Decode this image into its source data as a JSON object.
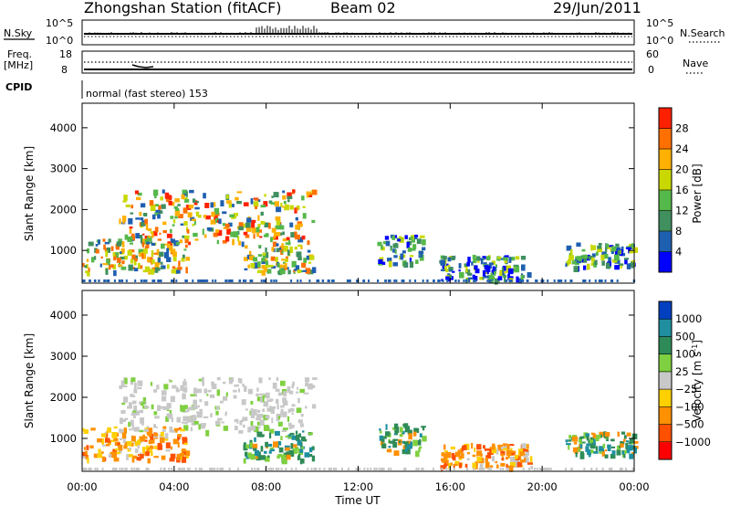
{
  "header": {
    "station": "Zhongshan Station (fitACF)",
    "beam": "Beam 02",
    "date": "29/Jun/2011"
  },
  "status_panel": {
    "nsky_label": "N.Sky",
    "nsky_top": "10^5",
    "nsky_bottom": "10^0",
    "nsearch_label": "N.Search",
    "nsearch_top": "10^5",
    "nsearch_bottom": "10^0",
    "freq_label": "Freq.",
    "freq_unit": "[MHz]",
    "freq_top": "18",
    "freq_bottom": "8",
    "nave_label": "Nave",
    "nave_top": "60",
    "nave_bottom": "0",
    "cpid_label": "CPID",
    "cpid_text": "normal (fast stereo) 153"
  },
  "chart_data": [
    {
      "type": "heatmap",
      "panel": "power",
      "ylabel": "Slant Range [km]",
      "yticks": [
        "1000",
        "2000",
        "3000",
        "4000"
      ],
      "ylim": [
        200,
        4600
      ],
      "xlim": [
        0,
        24
      ],
      "colorbar_label": "Power [dB]",
      "colorbar_ticks": [
        "4",
        "8",
        "12",
        "16",
        "20",
        "24",
        "28"
      ],
      "colorbar_colors": [
        "#0000ff",
        "#1f5fb0",
        "#3f8f5f",
        "#55b84a",
        "#c8d800",
        "#ffb000",
        "#ff7000",
        "#ff2000"
      ],
      "echo_regions": [
        {
          "t": [
            1.6,
            10.0
          ],
          "r": [
            1200,
            2500
          ],
          "level": "high"
        },
        {
          "t": [
            0.0,
            4.5
          ],
          "r": [
            500,
            1300
          ],
          "level": "medium"
        },
        {
          "t": [
            7.0,
            10.0
          ],
          "r": [
            500,
            1200
          ],
          "level": "medium"
        },
        {
          "t": [
            12.8,
            14.8
          ],
          "r": [
            700,
            1400
          ],
          "level": "low"
        },
        {
          "t": [
            15.5,
            19.5
          ],
          "r": [
            300,
            900
          ],
          "level": "low"
        },
        {
          "t": [
            21.0,
            24.0
          ],
          "r": [
            600,
            1200
          ],
          "level": "low"
        }
      ]
    },
    {
      "type": "heatmap",
      "panel": "velocity",
      "ylabel": "Slant Range [km]",
      "yticks": [
        "1000",
        "2000",
        "3000",
        "4000"
      ],
      "ylim": [
        200,
        4600
      ],
      "xlabel": "Time UT",
      "xticks": [
        "00:00",
        "04:00",
        "08:00",
        "12:00",
        "16:00",
        "20:00",
        "00:00"
      ],
      "xlim": [
        0,
        24
      ],
      "colorbar_label": "Velocity [m s",
      "colorbar_label_sup": "-1",
      "colorbar_label_end": "]",
      "colorbar_ticks": [
        "1000",
        "500",
        "100",
        "25",
        "−25",
        "−100",
        "−500",
        "−1000"
      ],
      "colorbar_colors": [
        "#0040c0",
        "#1f8fa0",
        "#2e8b57",
        "#7fd040",
        "#c8c8c8",
        "#ffd000",
        "#ff9000",
        "#ff5000",
        "#ff0000"
      ],
      "echo_regions": [
        {
          "t": [
            1.6,
            10.0
          ],
          "r": [
            1200,
            2500
          ],
          "level": "ground"
        },
        {
          "t": [
            0.0,
            4.5
          ],
          "r": [
            500,
            1300
          ],
          "level": "negative"
        },
        {
          "t": [
            7.0,
            10.0
          ],
          "r": [
            500,
            1200
          ],
          "level": "positive"
        },
        {
          "t": [
            12.8,
            14.8
          ],
          "r": [
            700,
            1400
          ],
          "level": "positive"
        },
        {
          "t": [
            15.5,
            19.5
          ],
          "r": [
            300,
            900
          ],
          "level": "negative"
        },
        {
          "t": [
            21.0,
            24.0
          ],
          "r": [
            600,
            1200
          ],
          "level": "positive"
        }
      ]
    }
  ]
}
